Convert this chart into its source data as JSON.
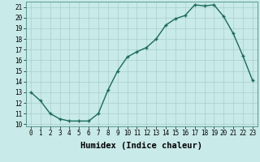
{
  "x": [
    0,
    1,
    2,
    3,
    4,
    5,
    6,
    7,
    8,
    9,
    10,
    11,
    12,
    13,
    14,
    15,
    16,
    17,
    18,
    19,
    20,
    21,
    22,
    23
  ],
  "y": [
    13,
    12.2,
    11,
    10.5,
    10.3,
    10.3,
    10.3,
    11,
    13.2,
    15,
    16.3,
    16.8,
    17.2,
    18,
    19.3,
    19.9,
    20.2,
    21.2,
    21.1,
    21.2,
    20.1,
    18.5,
    16.4,
    14.1
  ],
  "line_color": "#1a6b5a",
  "marker": "+",
  "marker_color": "#1a6b5a",
  "bg_color": "#c8eae8",
  "grid_color": "#a8cfcc",
  "xlabel": "Humidex (Indice chaleur)",
  "ylabel": "",
  "title": "",
  "xlim": [
    -0.5,
    23.5
  ],
  "ylim": [
    10,
    21.5
  ],
  "yticks": [
    10,
    11,
    12,
    13,
    14,
    15,
    16,
    17,
    18,
    19,
    20,
    21
  ],
  "xticks": [
    0,
    1,
    2,
    3,
    4,
    5,
    6,
    7,
    8,
    9,
    10,
    11,
    12,
    13,
    14,
    15,
    16,
    17,
    18,
    19,
    20,
    21,
    22,
    23
  ],
  "tick_fontsize": 5.5,
  "xlabel_fontsize": 7.5,
  "line_width": 1.0,
  "marker_size": 3.5
}
